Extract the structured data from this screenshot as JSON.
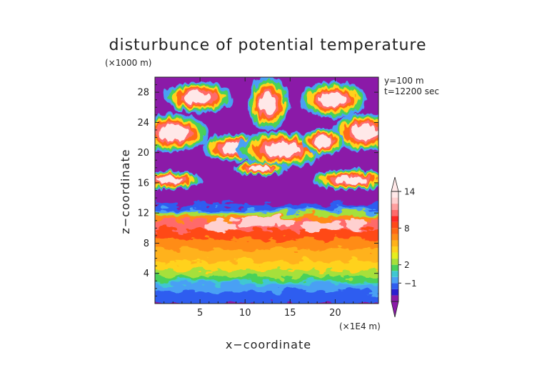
{
  "chart_data": {
    "type": "heatmap",
    "title": "disturbunce of potential temperature",
    "xlabel": "x−coordinate",
    "ylabel": "z−coordinate",
    "x_unit": "(×1E4 m)",
    "y_unit": "(×1000 m)",
    "annotations": [
      "y=100 m",
      "t=12200 sec"
    ],
    "xlim": [
      0,
      24.8
    ],
    "ylim": [
      0,
      30
    ],
    "x_ticks": [
      5,
      10,
      15,
      20
    ],
    "y_ticks": [
      4,
      8,
      12,
      16,
      20,
      24,
      28
    ],
    "colorbar": {
      "levels": [
        -3,
        -2,
        -1,
        0,
        1,
        2,
        3,
        4,
        5,
        6,
        7,
        8,
        9,
        10,
        11,
        12,
        13,
        14,
        15
      ],
      "tick_labels": [
        -1,
        2,
        8,
        14
      ],
      "colors": [
        "#8b1aa8",
        "#2b1fd0",
        "#2f5df0",
        "#4aa0f4",
        "#3fc7d2",
        "#49d15a",
        "#a6e03a",
        "#e6ee1e",
        "#ffd21e",
        "#ffb21a",
        "#ff8c16",
        "#ff6a14",
        "#ff4a18",
        "#ff2a24",
        "#ff6b6b",
        "#ff9f9f",
        "#ffd0d0",
        "#ffe8e8"
      ],
      "extend": "both"
    },
    "grid": false,
    "background_value": -3
  }
}
